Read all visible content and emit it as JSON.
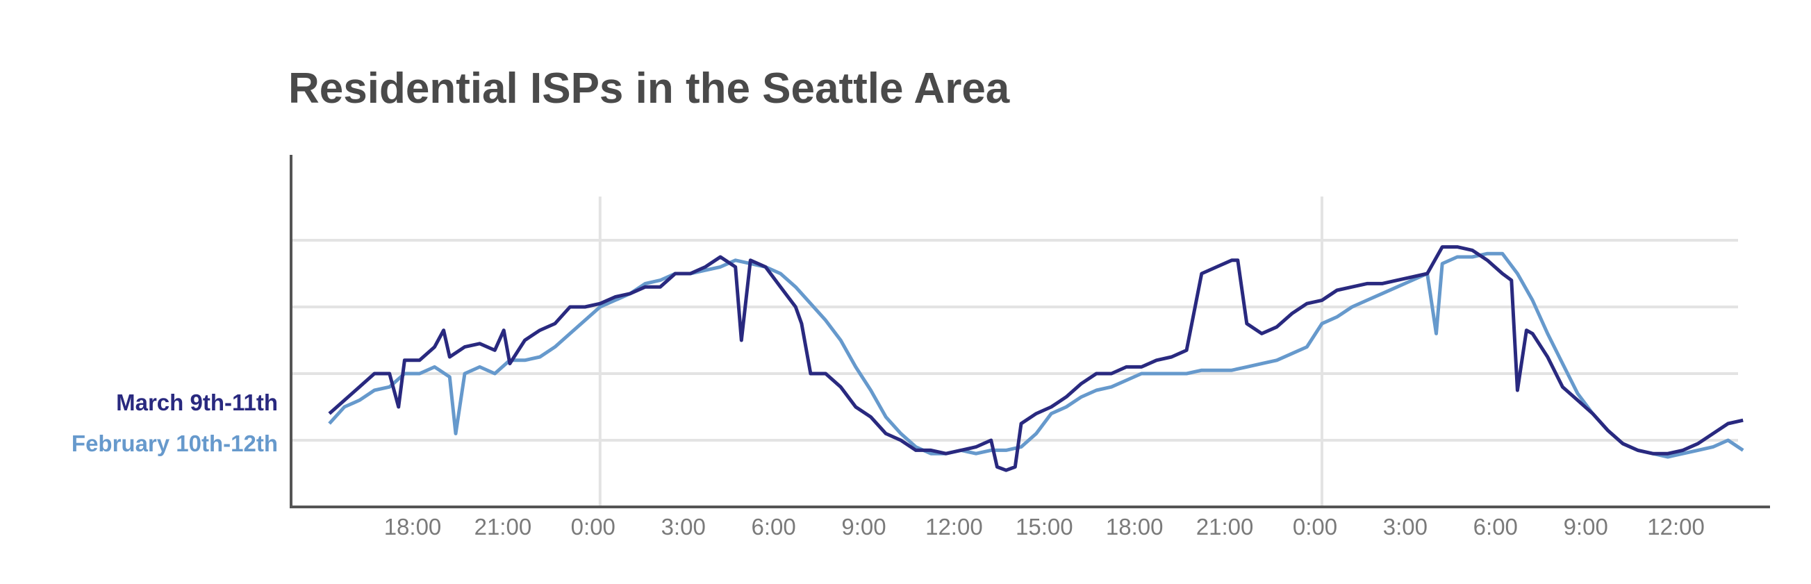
{
  "chart_data": {
    "type": "line",
    "title": "Residential ISPs in the Seattle Area",
    "xlabel": "",
    "ylabel": "",
    "grid": true,
    "legend_placement": "left",
    "x_tick_labels": [
      "18:00",
      "21:00",
      "0:00",
      "3:00",
      "6:00",
      "9:00",
      "12:00",
      "15:00",
      "18:00",
      "21:00",
      "0:00",
      "3:00",
      "6:00",
      "9:00",
      "12:00"
    ],
    "hours_from_first_tick": [
      0,
      3,
      6,
      9,
      12,
      15,
      18,
      21,
      24,
      27,
      30,
      33,
      36,
      39,
      42
    ],
    "x_range_hours": [
      -3,
      44
    ],
    "ylim": [
      0,
      1
    ],
    "y_gridlines": [
      0.2,
      0.4,
      0.6,
      0.8
    ],
    "x_gridlines_hours": [
      6,
      30
    ],
    "series": [
      {
        "name": "March 9th-11th",
        "color": "#29297f",
        "points": [
          [
            -3.0,
            0.28
          ],
          [
            -2.5,
            0.32
          ],
          [
            -2.0,
            0.36
          ],
          [
            -1.5,
            0.4
          ],
          [
            -1.0,
            0.4
          ],
          [
            -0.7,
            0.3
          ],
          [
            -0.5,
            0.44
          ],
          [
            0.0,
            0.44
          ],
          [
            0.5,
            0.48
          ],
          [
            0.8,
            0.53
          ],
          [
            1.0,
            0.45
          ],
          [
            1.5,
            0.48
          ],
          [
            2.0,
            0.49
          ],
          [
            2.5,
            0.47
          ],
          [
            2.8,
            0.53
          ],
          [
            3.0,
            0.43
          ],
          [
            3.5,
            0.5
          ],
          [
            4.0,
            0.53
          ],
          [
            4.5,
            0.55
          ],
          [
            5.0,
            0.6
          ],
          [
            5.5,
            0.6
          ],
          [
            6.0,
            0.61
          ],
          [
            6.5,
            0.63
          ],
          [
            7.0,
            0.64
          ],
          [
            7.5,
            0.66
          ],
          [
            8.0,
            0.66
          ],
          [
            8.5,
            0.7
          ],
          [
            9.0,
            0.7
          ],
          [
            9.5,
            0.72
          ],
          [
            10.0,
            0.75
          ],
          [
            10.5,
            0.72
          ],
          [
            10.7,
            0.5
          ],
          [
            11.0,
            0.74
          ],
          [
            11.5,
            0.72
          ],
          [
            12.0,
            0.66
          ],
          [
            12.5,
            0.6
          ],
          [
            12.7,
            0.55
          ],
          [
            13.0,
            0.4
          ],
          [
            13.5,
            0.4
          ],
          [
            14.0,
            0.36
          ],
          [
            14.5,
            0.3
          ],
          [
            15.0,
            0.27
          ],
          [
            15.5,
            0.22
          ],
          [
            16.0,
            0.2
          ],
          [
            16.5,
            0.17
          ],
          [
            17.0,
            0.17
          ],
          [
            17.5,
            0.16
          ],
          [
            18.0,
            0.17
          ],
          [
            18.5,
            0.18
          ],
          [
            19.0,
            0.2
          ],
          [
            19.2,
            0.12
          ],
          [
            19.5,
            0.11
          ],
          [
            19.8,
            0.12
          ],
          [
            20.0,
            0.25
          ],
          [
            20.5,
            0.28
          ],
          [
            21.0,
            0.3
          ],
          [
            21.5,
            0.33
          ],
          [
            22.0,
            0.37
          ],
          [
            22.5,
            0.4
          ],
          [
            23.0,
            0.4
          ],
          [
            23.5,
            0.42
          ],
          [
            24.0,
            0.42
          ],
          [
            24.5,
            0.44
          ],
          [
            25.0,
            0.45
          ],
          [
            25.5,
            0.47
          ],
          [
            26.0,
            0.7
          ],
          [
            26.5,
            0.72
          ],
          [
            27.0,
            0.74
          ],
          [
            27.2,
            0.74
          ],
          [
            27.5,
            0.55
          ],
          [
            28.0,
            0.52
          ],
          [
            28.5,
            0.54
          ],
          [
            29.0,
            0.58
          ],
          [
            29.5,
            0.61
          ],
          [
            30.0,
            0.62
          ],
          [
            30.5,
            0.65
          ],
          [
            31.0,
            0.66
          ],
          [
            31.5,
            0.67
          ],
          [
            32.0,
            0.67
          ],
          [
            32.5,
            0.68
          ],
          [
            33.0,
            0.69
          ],
          [
            33.5,
            0.7
          ],
          [
            34.0,
            0.78
          ],
          [
            34.5,
            0.78
          ],
          [
            35.0,
            0.77
          ],
          [
            35.5,
            0.74
          ],
          [
            36.0,
            0.7
          ],
          [
            36.3,
            0.68
          ],
          [
            36.5,
            0.35
          ],
          [
            36.8,
            0.53
          ],
          [
            37.0,
            0.52
          ],
          [
            37.5,
            0.45
          ],
          [
            38.0,
            0.36
          ],
          [
            38.5,
            0.32
          ],
          [
            39.0,
            0.28
          ],
          [
            39.5,
            0.23
          ],
          [
            40.0,
            0.19
          ],
          [
            40.5,
            0.17
          ],
          [
            41.0,
            0.16
          ],
          [
            41.5,
            0.16
          ],
          [
            42.0,
            0.17
          ],
          [
            42.5,
            0.19
          ],
          [
            43.0,
            0.22
          ],
          [
            43.5,
            0.25
          ],
          [
            44.0,
            0.26
          ]
        ]
      },
      {
        "name": "February 10th-12th",
        "color": "#6699cc",
        "points": [
          [
            -3.0,
            0.25
          ],
          [
            -2.5,
            0.3
          ],
          [
            -2.0,
            0.32
          ],
          [
            -1.5,
            0.35
          ],
          [
            -1.0,
            0.36
          ],
          [
            -0.5,
            0.4
          ],
          [
            0.0,
            0.4
          ],
          [
            0.5,
            0.42
          ],
          [
            1.0,
            0.39
          ],
          [
            1.2,
            0.22
          ],
          [
            1.5,
            0.4
          ],
          [
            2.0,
            0.42
          ],
          [
            2.5,
            0.4
          ],
          [
            3.0,
            0.44
          ],
          [
            3.5,
            0.44
          ],
          [
            4.0,
            0.45
          ],
          [
            4.5,
            0.48
          ],
          [
            5.0,
            0.52
          ],
          [
            5.5,
            0.56
          ],
          [
            6.0,
            0.6
          ],
          [
            6.5,
            0.62
          ],
          [
            7.0,
            0.64
          ],
          [
            7.5,
            0.67
          ],
          [
            8.0,
            0.68
          ],
          [
            8.5,
            0.7
          ],
          [
            9.0,
            0.7
          ],
          [
            9.5,
            0.71
          ],
          [
            10.0,
            0.72
          ],
          [
            10.5,
            0.74
          ],
          [
            11.0,
            0.73
          ],
          [
            11.5,
            0.72
          ],
          [
            12.0,
            0.7
          ],
          [
            12.5,
            0.66
          ],
          [
            13.0,
            0.61
          ],
          [
            13.5,
            0.56
          ],
          [
            14.0,
            0.5
          ],
          [
            14.5,
            0.42
          ],
          [
            15.0,
            0.35
          ],
          [
            15.5,
            0.27
          ],
          [
            16.0,
            0.22
          ],
          [
            16.5,
            0.18
          ],
          [
            17.0,
            0.16
          ],
          [
            17.5,
            0.16
          ],
          [
            18.0,
            0.17
          ],
          [
            18.5,
            0.16
          ],
          [
            19.0,
            0.17
          ],
          [
            19.5,
            0.17
          ],
          [
            20.0,
            0.18
          ],
          [
            20.5,
            0.22
          ],
          [
            21.0,
            0.28
          ],
          [
            21.5,
            0.3
          ],
          [
            22.0,
            0.33
          ],
          [
            22.5,
            0.35
          ],
          [
            23.0,
            0.36
          ],
          [
            23.5,
            0.38
          ],
          [
            24.0,
            0.4
          ],
          [
            24.5,
            0.4
          ],
          [
            25.0,
            0.4
          ],
          [
            25.5,
            0.4
          ],
          [
            26.0,
            0.41
          ],
          [
            26.5,
            0.41
          ],
          [
            27.0,
            0.41
          ],
          [
            27.5,
            0.42
          ],
          [
            28.0,
            0.43
          ],
          [
            28.5,
            0.44
          ],
          [
            29.0,
            0.46
          ],
          [
            29.5,
            0.48
          ],
          [
            30.0,
            0.55
          ],
          [
            30.5,
            0.57
          ],
          [
            31.0,
            0.6
          ],
          [
            31.5,
            0.62
          ],
          [
            32.0,
            0.64
          ],
          [
            32.5,
            0.66
          ],
          [
            33.0,
            0.68
          ],
          [
            33.5,
            0.7
          ],
          [
            33.8,
            0.52
          ],
          [
            34.0,
            0.73
          ],
          [
            34.5,
            0.75
          ],
          [
            35.0,
            0.75
          ],
          [
            35.5,
            0.76
          ],
          [
            36.0,
            0.76
          ],
          [
            36.5,
            0.7
          ],
          [
            37.0,
            0.62
          ],
          [
            37.5,
            0.52
          ],
          [
            38.0,
            0.43
          ],
          [
            38.5,
            0.34
          ],
          [
            39.0,
            0.28
          ],
          [
            39.5,
            0.23
          ],
          [
            40.0,
            0.19
          ],
          [
            40.5,
            0.17
          ],
          [
            41.0,
            0.16
          ],
          [
            41.5,
            0.15
          ],
          [
            42.0,
            0.16
          ],
          [
            42.5,
            0.17
          ],
          [
            43.0,
            0.18
          ],
          [
            43.5,
            0.2
          ],
          [
            44.0,
            0.17
          ]
        ]
      }
    ]
  }
}
